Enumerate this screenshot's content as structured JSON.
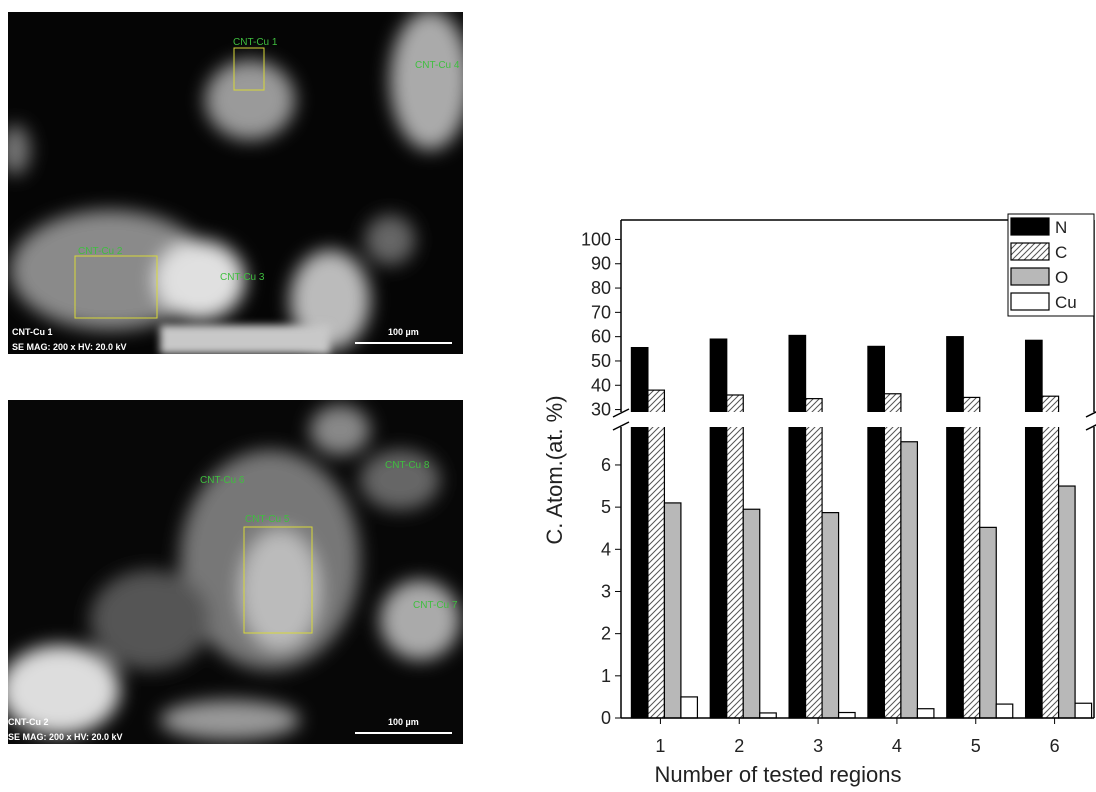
{
  "sem_images": [
    {
      "annotations": [
        "CNT-Cu 1",
        "CNT-Cu 4",
        "CNT-Cu 2",
        "CNT-Cu 3"
      ],
      "sample": "CNT-Cu 1",
      "info": "SE  MAG: 200 x  HV: 20.0 kV",
      "scale": "100 µm"
    },
    {
      "annotations": [
        "CNT-Cu 6",
        "CNT-Cu 8",
        "CNT-Cu 5",
        "CNT-Cu 7"
      ],
      "sample": "CNT-Cu 2",
      "info": "SE  MAG: 200 x  HV: 20.0 kV",
      "scale": "100 µm"
    }
  ],
  "chart_data": {
    "type": "bar",
    "ylabel": "C. Atom.(at. %)",
    "xlabel": "Number of tested regions",
    "categories": [
      "1",
      "2",
      "3",
      "4",
      "5",
      "6"
    ],
    "series": [
      {
        "name": "N",
        "color": "#000000",
        "values": [
          55.5,
          59,
          60.5,
          56,
          60,
          58.5
        ]
      },
      {
        "name": "C",
        "color": "#ffffff",
        "hatch": true,
        "values": [
          38,
          36,
          34.5,
          36.5,
          35,
          35.5
        ]
      },
      {
        "name": "O",
        "color": "#b8b8b8",
        "values": [
          5.1,
          4.95,
          4.87,
          6.55,
          4.52,
          5.5
        ]
      },
      {
        "name": "Cu",
        "color": "#ffffff",
        "values": [
          0.5,
          0.12,
          0.13,
          0.22,
          0.33,
          0.35
        ]
      }
    ],
    "axis_break": true,
    "segments": [
      {
        "ylim": [
          0,
          6.9
        ],
        "yticks": [
          0,
          1,
          2,
          3,
          4,
          5,
          6
        ]
      },
      {
        "ylim": [
          29,
          108
        ],
        "yticks": [
          30,
          40,
          50,
          60,
          70,
          80,
          90,
          100
        ]
      }
    ],
    "legend": "upper right"
  }
}
